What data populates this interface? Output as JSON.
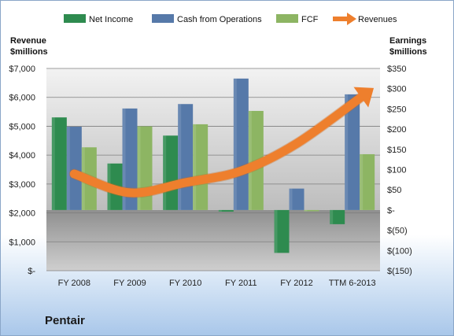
{
  "chart_data": {
    "type": "bar",
    "company": "Pentair",
    "categories": [
      "FY 2008",
      "FY 2009",
      "FY 2010",
      "FY 2011",
      "FY 2012",
      "TTM 6-2013"
    ],
    "left_axis": {
      "title_lines": [
        "Revenue",
        "$millions"
      ],
      "ticks": [
        "$-",
        "$1,000",
        "$2,000",
        "$3,000",
        "$4,000",
        "$5,000",
        "$6,000",
        "$7,000"
      ],
      "ylim": [
        0,
        7000
      ]
    },
    "right_axis": {
      "title_lines": [
        "Earnings",
        "$millions"
      ],
      "ticks": [
        "$(150)",
        "$(100)",
        "$(50)",
        "$-",
        "$50",
        "$100",
        "$150",
        "$200",
        "$250",
        "$300",
        "$350"
      ],
      "ylim": [
        -150,
        350
      ]
    },
    "series": [
      {
        "name": "Net Income",
        "type": "bar",
        "axis": "right",
        "color": "#2e8b4f",
        "values": [
          229,
          115,
          184,
          -4,
          -106,
          -35
        ]
      },
      {
        "name": "Cash from Operations",
        "type": "bar",
        "axis": "right",
        "color": "#5679a9",
        "values": [
          206,
          251,
          262,
          325,
          53,
          286
        ]
      },
      {
        "name": "FCF",
        "type": "bar",
        "axis": "right",
        "color": "#8db563",
        "values": [
          155,
          207,
          212,
          245,
          -3,
          138
        ]
      },
      {
        "name": "Revenues",
        "type": "line",
        "axis": "left",
        "color": "#ee7f2d",
        "values": [
          3350,
          2700,
          3050,
          3450,
          4400,
          6100
        ]
      }
    ],
    "legend_position": "top",
    "grid": true
  }
}
